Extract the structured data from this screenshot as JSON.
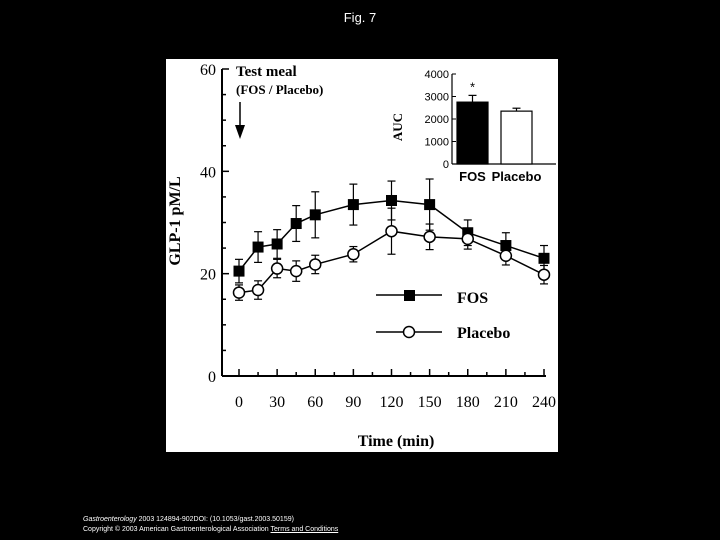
{
  "figure": {
    "title": "Fig. 7"
  },
  "footer": {
    "journal": "Gastroenterology",
    "citation": " 2003 124894-902DOI: (10.1053/gast.2003.50159)",
    "copyright": "Copyright © 2003 American Gastroenterological Association",
    "terms_link": "Terms and Conditions"
  },
  "chart_data": [
    {
      "type": "line",
      "title": "",
      "xlabel": "Time  (min)",
      "ylabel": "GLP-1  pM/L",
      "x": [
        0,
        15,
        30,
        45,
        60,
        90,
        120,
        150,
        180,
        210,
        240
      ],
      "x_ticks": [
        0,
        30,
        60,
        90,
        120,
        150,
        180,
        210,
        240
      ],
      "y_ticks": [
        0,
        20,
        40,
        60
      ],
      "xlim": [
        0,
        240
      ],
      "ylim": [
        0,
        60
      ],
      "grid": false,
      "legend_position": "bottom-right",
      "annotation": {
        "line1": "Test  meal",
        "line2": "(FOS  /  Placebo)",
        "arrow_at_x": 0
      },
      "series": [
        {
          "name": "FOS",
          "marker": "filled-square",
          "values": [
            20.5,
            25.2,
            25.8,
            29.8,
            31.5,
            33.5,
            34.3,
            33.5,
            28.0,
            25.5,
            23.0
          ],
          "errors": [
            2.3,
            3.0,
            2.8,
            3.5,
            4.5,
            4.0,
            3.8,
            5.0,
            2.5,
            2.5,
            2.5
          ]
        },
        {
          "name": "Placebo",
          "marker": "open-circle",
          "values": [
            16.3,
            16.8,
            21.0,
            20.5,
            21.8,
            23.8,
            28.3,
            27.2,
            26.8,
            23.5,
            19.8
          ],
          "errors": [
            1.5,
            1.8,
            1.8,
            2.0,
            1.8,
            1.5,
            4.5,
            2.5,
            2.0,
            1.8,
            1.8
          ]
        }
      ]
    },
    {
      "type": "bar",
      "title": "",
      "ylabel": "AUC",
      "categories": [
        "FOS",
        "Placebo"
      ],
      "values": [
        2750,
        2350
      ],
      "errors": [
        300,
        130
      ],
      "y_ticks": [
        0,
        1000,
        2000,
        3000,
        4000
      ],
      "ylim": [
        0,
        4000
      ],
      "annotations": [
        "*"
      ],
      "colors": [
        "#000000",
        "#ffffff"
      ]
    }
  ]
}
